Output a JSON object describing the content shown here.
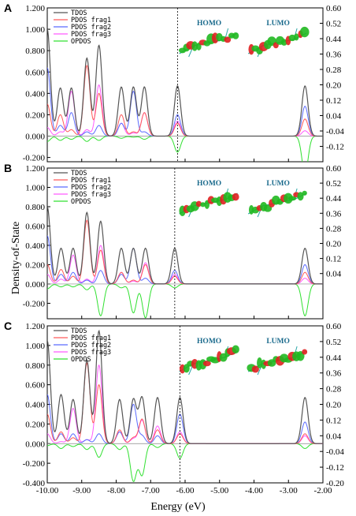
{
  "figure": {
    "ylabel": "Density-of-State",
    "xlabel": "Energy (eV)",
    "colors": {
      "TDOS": "#555555",
      "PDOS frag1": "#ff5a5a",
      "PDOS frag2": "#5a6aff",
      "PDOS frag3": "#ff5aff",
      "OPDOS": "#30e030"
    },
    "orbital_labels": {
      "homo": "HOMO",
      "lumo": "LUMO"
    }
  },
  "chart_data": [
    {
      "type": "line",
      "panel": "A",
      "x_range": [
        -10.0,
        -2.0
      ],
      "ylim_left": [
        -0.24,
        1.2
      ],
      "ylim_right": [
        -0.2,
        0.6
      ],
      "left_ticks": [
        "-0.200",
        "0.000",
        "0.200",
        "0.400",
        "0.600",
        "0.800",
        "1.000",
        "1.200"
      ],
      "right_ticks": [
        "-0.12",
        "-0.04",
        "0.04",
        "0.12",
        "0.20",
        "0.28",
        "0.36",
        "0.44",
        "0.52",
        "0.60"
      ],
      "homo_line_x": -6.22,
      "legend": [
        "TDOS",
        "PDOS frag1",
        "PDOS frag2",
        "PDOS frag3",
        "OPDOS"
      ],
      "peaks": [
        {
          "e": -10.0,
          "tdos": 1.0,
          "f1": 0.3,
          "f2": 0.64,
          "f3": 0.08,
          "op": -0.05
        },
        {
          "e": -9.62,
          "tdos": 0.45,
          "f1": 0.2,
          "f2": 0.1,
          "f3": 0.04,
          "op": -0.04
        },
        {
          "e": -9.3,
          "tdos": 0.45,
          "f1": 0.06,
          "f2": 0.22,
          "f3": 0.42,
          "op": -0.03
        },
        {
          "e": -8.85,
          "tdos": 0.73,
          "f1": 0.66,
          "f2": 0.04,
          "f3": 0.06,
          "op": -0.05
        },
        {
          "e": -8.5,
          "tdos": 0.85,
          "f1": 0.4,
          "f2": 0.1,
          "f3": 0.48,
          "op": -0.04
        },
        {
          "e": -7.85,
          "tdos": 0.46,
          "f1": 0.2,
          "f2": 0.12,
          "f3": 0.12,
          "op": -0.02
        },
        {
          "e": -7.5,
          "tdos": 0.46,
          "f1": 0.04,
          "f2": 0.42,
          "f3": 0.03,
          "op": -0.01
        },
        {
          "e": -7.18,
          "tdos": 0.46,
          "f1": 0.22,
          "f2": 0.04,
          "f3": 0.22,
          "op": -0.03
        },
        {
          "e": -6.22,
          "tdos": 0.47,
          "f1": 0.12,
          "f2": 0.2,
          "f3": 0.14,
          "op": -0.15
        },
        {
          "e": -2.52,
          "tdos": 0.47,
          "f1": 0.16,
          "f2": 0.28,
          "f3": 0.05,
          "op": -0.35
        }
      ]
    },
    {
      "type": "line",
      "panel": "B",
      "x_range": [
        -10.0,
        -2.0
      ],
      "ylim_left": [
        -0.36,
        1.2
      ],
      "ylim_right": [
        -0.2,
        0.6
      ],
      "left_ticks": [
        "-0.200",
        "0.000",
        "0.200",
        "0.400",
        "0.600",
        "0.800",
        "1.000",
        "1.200"
      ],
      "right_ticks": [
        "0.04",
        "0.12",
        "0.20",
        "0.28",
        "0.36",
        "0.44",
        "0.52",
        "0.60"
      ],
      "homo_line_x": -6.3,
      "legend": [
        "TDOS",
        "PDOS frag1",
        "PDOS frag2",
        "PDOS frag3",
        "OPDOS"
      ],
      "peaks": [
        {
          "e": -10.0,
          "tdos": 0.8,
          "f1": 0.2,
          "f2": 0.5,
          "f3": 0.1,
          "op": -0.05
        },
        {
          "e": -9.6,
          "tdos": 0.37,
          "f1": 0.15,
          "f2": 0.1,
          "f3": 0.05,
          "op": -0.03
        },
        {
          "e": -9.25,
          "tdos": 0.37,
          "f1": 0.08,
          "f2": 0.12,
          "f3": 0.3,
          "op": -0.03
        },
        {
          "e": -8.85,
          "tdos": 0.74,
          "f1": 0.66,
          "f2": 0.04,
          "f3": 0.05,
          "op": -0.06
        },
        {
          "e": -8.45,
          "tdos": 0.65,
          "f1": 0.35,
          "f2": 0.14,
          "f3": 0.4,
          "op": -0.33
        },
        {
          "e": -7.85,
          "tdos": 0.37,
          "f1": 0.12,
          "f2": 0.1,
          "f3": 0.12,
          "op": -0.04
        },
        {
          "e": -7.5,
          "tdos": 0.37,
          "f1": 0.04,
          "f2": 0.37,
          "f3": 0.03,
          "op": -0.3
        },
        {
          "e": -7.15,
          "tdos": 0.37,
          "f1": 0.2,
          "f2": 0.06,
          "f3": 0.22,
          "op": -0.35
        },
        {
          "e": -6.3,
          "tdos": 0.37,
          "f1": 0.08,
          "f2": 0.14,
          "f3": 0.1,
          "op": -0.04
        },
        {
          "e": -2.52,
          "tdos": 0.37,
          "f1": 0.12,
          "f2": 0.2,
          "f3": 0.06,
          "op": -0.33
        }
      ]
    },
    {
      "type": "line",
      "panel": "C",
      "x_range": [
        -10.0,
        -2.0
      ],
      "ylim_left": [
        -0.4,
        1.2
      ],
      "ylim_right": [
        -0.2,
        0.6
      ],
      "left_ticks": [
        "-0.400",
        "-0.200",
        "0.000",
        "0.200",
        "0.400",
        "0.600",
        "0.800",
        "1.000",
        "1.200"
      ],
      "right_ticks": [
        "-0.20",
        "-0.12",
        "-0.04",
        "0.04",
        "0.12",
        "0.20",
        "0.28",
        "0.36",
        "0.44",
        "0.52",
        "0.60"
      ],
      "homo_line_x": -6.15,
      "legend": [
        "TDOS",
        "PDOS frag1",
        "PDOS frag2",
        "PDOS frag3",
        "OPDOS"
      ],
      "peaks": [
        {
          "e": -10.0,
          "tdos": 1.05,
          "f1": 0.3,
          "f2": 0.5,
          "f3": 0.1,
          "op": -0.02
        },
        {
          "e": -9.6,
          "tdos": 0.5,
          "f1": 0.12,
          "f2": 0.1,
          "f3": 0.02,
          "op": -0.05
        },
        {
          "e": -9.25,
          "tdos": 0.45,
          "f1": 0.06,
          "f2": 0.1,
          "f3": 0.36,
          "op": -0.03
        },
        {
          "e": -8.85,
          "tdos": 0.85,
          "f1": 0.82,
          "f2": 0.04,
          "f3": 0.04,
          "op": -0.06
        },
        {
          "e": -8.5,
          "tdos": 1.15,
          "f1": 0.6,
          "f2": 0.1,
          "f3": 0.8,
          "op": -0.14
        },
        {
          "e": -7.9,
          "tdos": 0.45,
          "f1": 0.14,
          "f2": 0.12,
          "f3": 0.12,
          "op": -0.06
        },
        {
          "e": -7.5,
          "tdos": 0.45,
          "f1": 0.06,
          "f2": 0.4,
          "f3": 0.05,
          "op": -0.38
        },
        {
          "e": -7.25,
          "tdos": 0.47,
          "f1": 0.25,
          "f2": 0.08,
          "f3": 0.24,
          "op": -0.32
        },
        {
          "e": -6.8,
          "tdos": 0.47,
          "f1": 0.14,
          "f2": 0.08,
          "f3": 0.18,
          "op": -0.04
        },
        {
          "e": -6.15,
          "tdos": 0.47,
          "f1": 0.1,
          "f2": 0.3,
          "f3": 0.12,
          "op": -0.15
        },
        {
          "e": -2.52,
          "tdos": 0.47,
          "f1": 0.1,
          "f2": 0.22,
          "f3": 0.08,
          "op": -0.05
        }
      ]
    }
  ]
}
